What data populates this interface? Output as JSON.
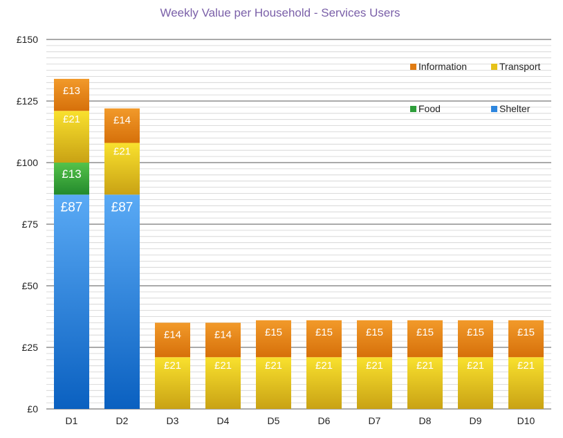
{
  "chart_data": {
    "type": "bar",
    "stacked": true,
    "title": "Weekly Value per Household - Services Users",
    "xlabel": "",
    "ylabel": "",
    "ylim": [
      0,
      150
    ],
    "yticks": [
      0,
      25,
      50,
      75,
      100,
      125,
      150
    ],
    "ytick_labels": [
      "£0",
      "£25",
      "£50",
      "£75",
      "£100",
      "£125",
      "£150"
    ],
    "grid": true,
    "minor_grid": true,
    "legend_position": "top-right",
    "categories": [
      "D1",
      "D2",
      "D3",
      "D4",
      "D5",
      "D6",
      "D7",
      "D8",
      "D9",
      "D10"
    ],
    "series": [
      {
        "name": "Shelter",
        "color": "#2e86de",
        "values": [
          87,
          87,
          0,
          0,
          0,
          0,
          0,
          0,
          0,
          0
        ],
        "labels": [
          "£87",
          "£87",
          "",
          "",
          "",
          "",
          "",
          "",
          "",
          ""
        ]
      },
      {
        "name": "Food",
        "color": "#2e9e3a",
        "values": [
          13,
          0,
          0,
          0,
          0,
          0,
          0,
          0,
          0,
          0
        ],
        "labels": [
          "£13",
          "",
          "",
          "",
          "",
          "",
          "",
          "",
          "",
          ""
        ]
      },
      {
        "name": "Transport",
        "color": "#e6c21a",
        "values": [
          21,
          21,
          21,
          21,
          21,
          21,
          21,
          21,
          21,
          21
        ],
        "labels": [
          "£21",
          "£21",
          "£21",
          "£21",
          "£21",
          "£21",
          "£21",
          "£21",
          "£21",
          "£21"
        ]
      },
      {
        "name": "Information",
        "color": "#e07b12",
        "values": [
          13,
          14,
          14,
          14,
          15,
          15,
          15,
          15,
          15,
          15
        ],
        "labels": [
          "£13",
          "£14",
          "£14",
          "£14",
          "£15",
          "£15",
          "£15",
          "£15",
          "£15",
          "£15"
        ]
      }
    ],
    "legend": [
      "Information",
      "Transport",
      "Food",
      "Shelter"
    ]
  }
}
